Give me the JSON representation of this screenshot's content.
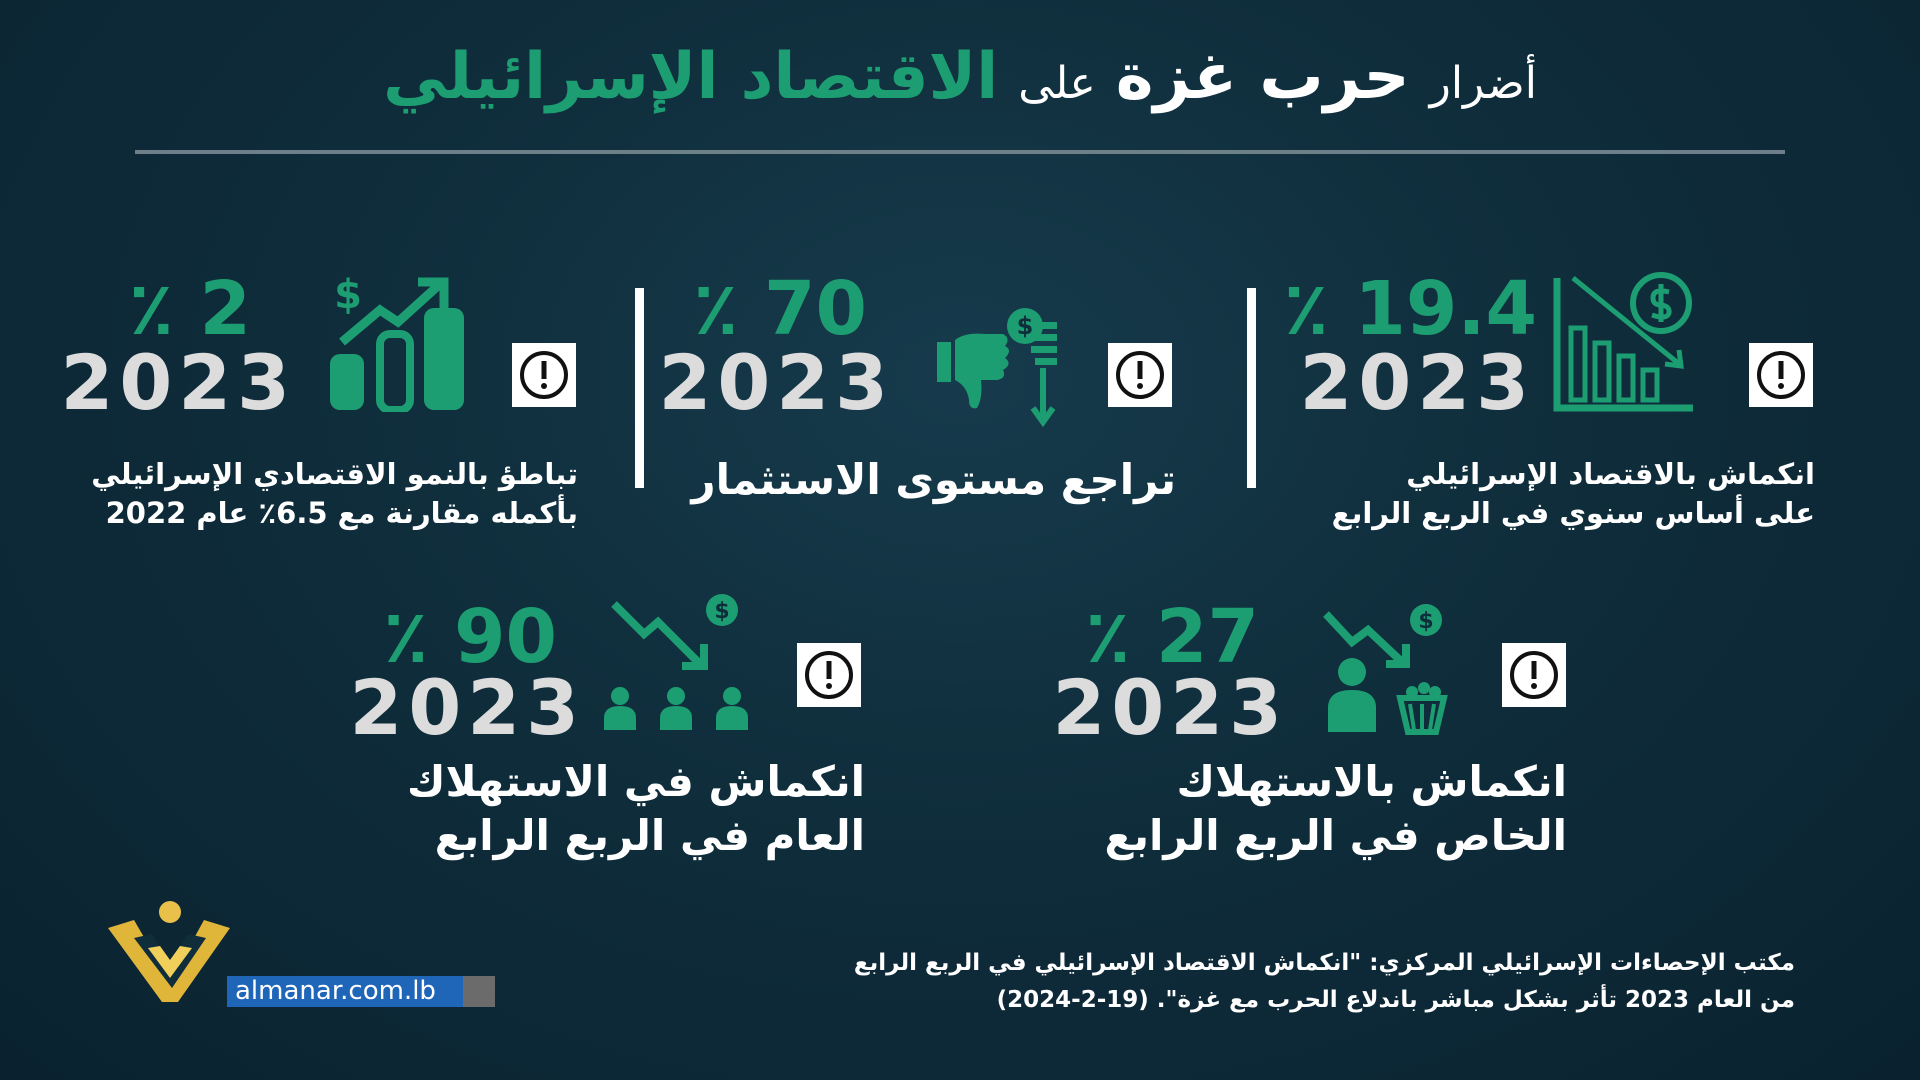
{
  "title": {
    "part1": "أضرار",
    "part2": "حرب غزة",
    "part3": "على",
    "part4": "الاقتصاد الإسرائيلي"
  },
  "cards": [
    {
      "percent": "٪ 19.4",
      "year": "2023",
      "lines": [
        "انكماش بالاقتصاد الإسرائيلي",
        "على أساس سنوي في الربع الرابع"
      ]
    },
    {
      "percent": "٪ 70",
      "year": "2023",
      "lines": [
        "تراجع مستوى الاستثمار"
      ]
    },
    {
      "percent": "٪ 2",
      "year": "2023",
      "lines": [
        "تباطؤ بالنمو الاقتصادي الإسرائيلي",
        "بأكمله مقارنة مع 6.5٪ عام 2022"
      ]
    },
    {
      "percent": "٪ 27",
      "year": "2023",
      "lines": [
        "انكماش بالاستهلاك",
        "الخاص في الربع الرابع"
      ]
    },
    {
      "percent": "٪ 90",
      "year": "2023",
      "lines": [
        "انكماش في الاستهلاك",
        "العام في الربع الرابع"
      ]
    }
  ],
  "source": [
    "مكتب الإحصاءات الإسرائيلي المركزي: \"انكماش الاقتصاد الإسرائيلي في الربع الرابع",
    "من العام 2023 تأثر بشكل مباشر باندلاع الحرب مع غزة\". (19-2-2024)"
  ],
  "logo": "almanar.com.lb"
}
